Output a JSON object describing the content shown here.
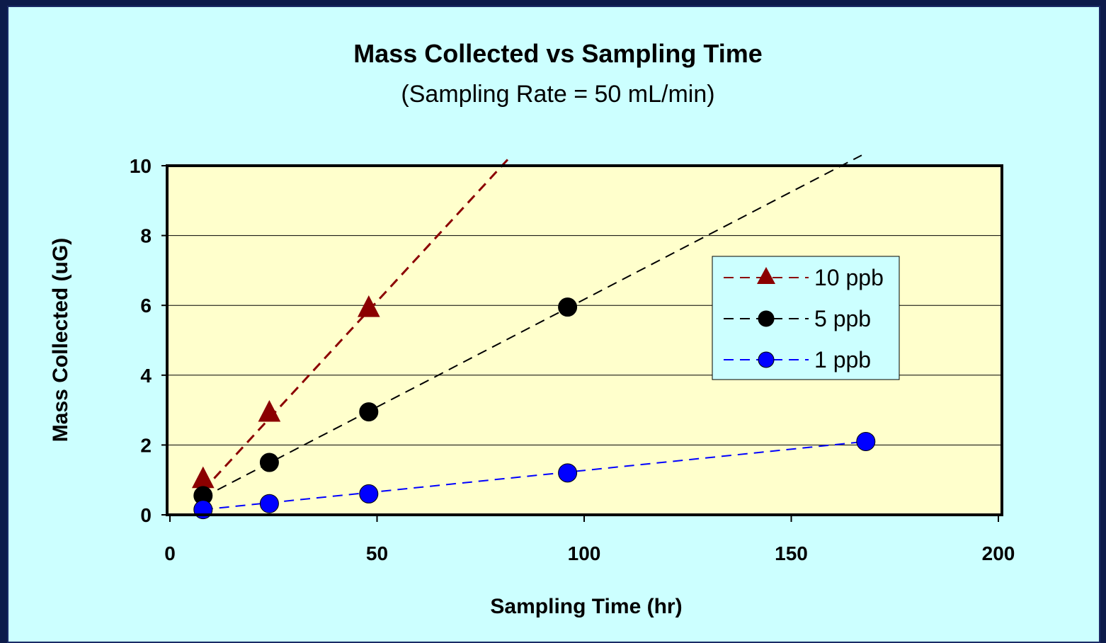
{
  "chart_data": {
    "type": "line",
    "title": "Mass Collected vs Sampling Time",
    "subtitle": "(Sampling Rate = 50 mL/min)",
    "xlabel": "Sampling Time (hr)",
    "ylabel": "Mass Collected (uG)",
    "xlim": [
      0,
      200
    ],
    "ylim": [
      0,
      10
    ],
    "xticks": [
      "0",
      "50",
      "100",
      "150",
      "200"
    ],
    "yticks": [
      "0",
      "2",
      "4",
      "6",
      "8",
      "10"
    ],
    "grid": "horizontal",
    "legend_position": "right",
    "series": [
      {
        "name": "10 ppb",
        "color": "#8b0000",
        "marker": "triangle",
        "x": [
          8,
          24,
          48
        ],
        "y": [
          1.0,
          2.9,
          5.9
        ],
        "trend": {
          "x": [
            8,
            82.5
          ],
          "y": [
            0.7,
            10.3
          ]
        }
      },
      {
        "name": "5 ppb",
        "color": "#000000",
        "marker": "circle",
        "x": [
          8,
          24,
          48,
          96
        ],
        "y": [
          0.55,
          1.5,
          2.95,
          5.95
        ],
        "trend": {
          "x": [
            8,
            167
          ],
          "y": [
            0.5,
            10.3
          ]
        }
      },
      {
        "name": "1 ppb",
        "color": "#0000ff",
        "marker": "circle",
        "x": [
          8,
          24,
          48,
          96,
          168
        ],
        "y": [
          0.15,
          0.32,
          0.6,
          1.2,
          2.1
        ],
        "trend": {
          "x": [
            8,
            168
          ],
          "y": [
            0.15,
            2.1
          ]
        }
      }
    ]
  }
}
